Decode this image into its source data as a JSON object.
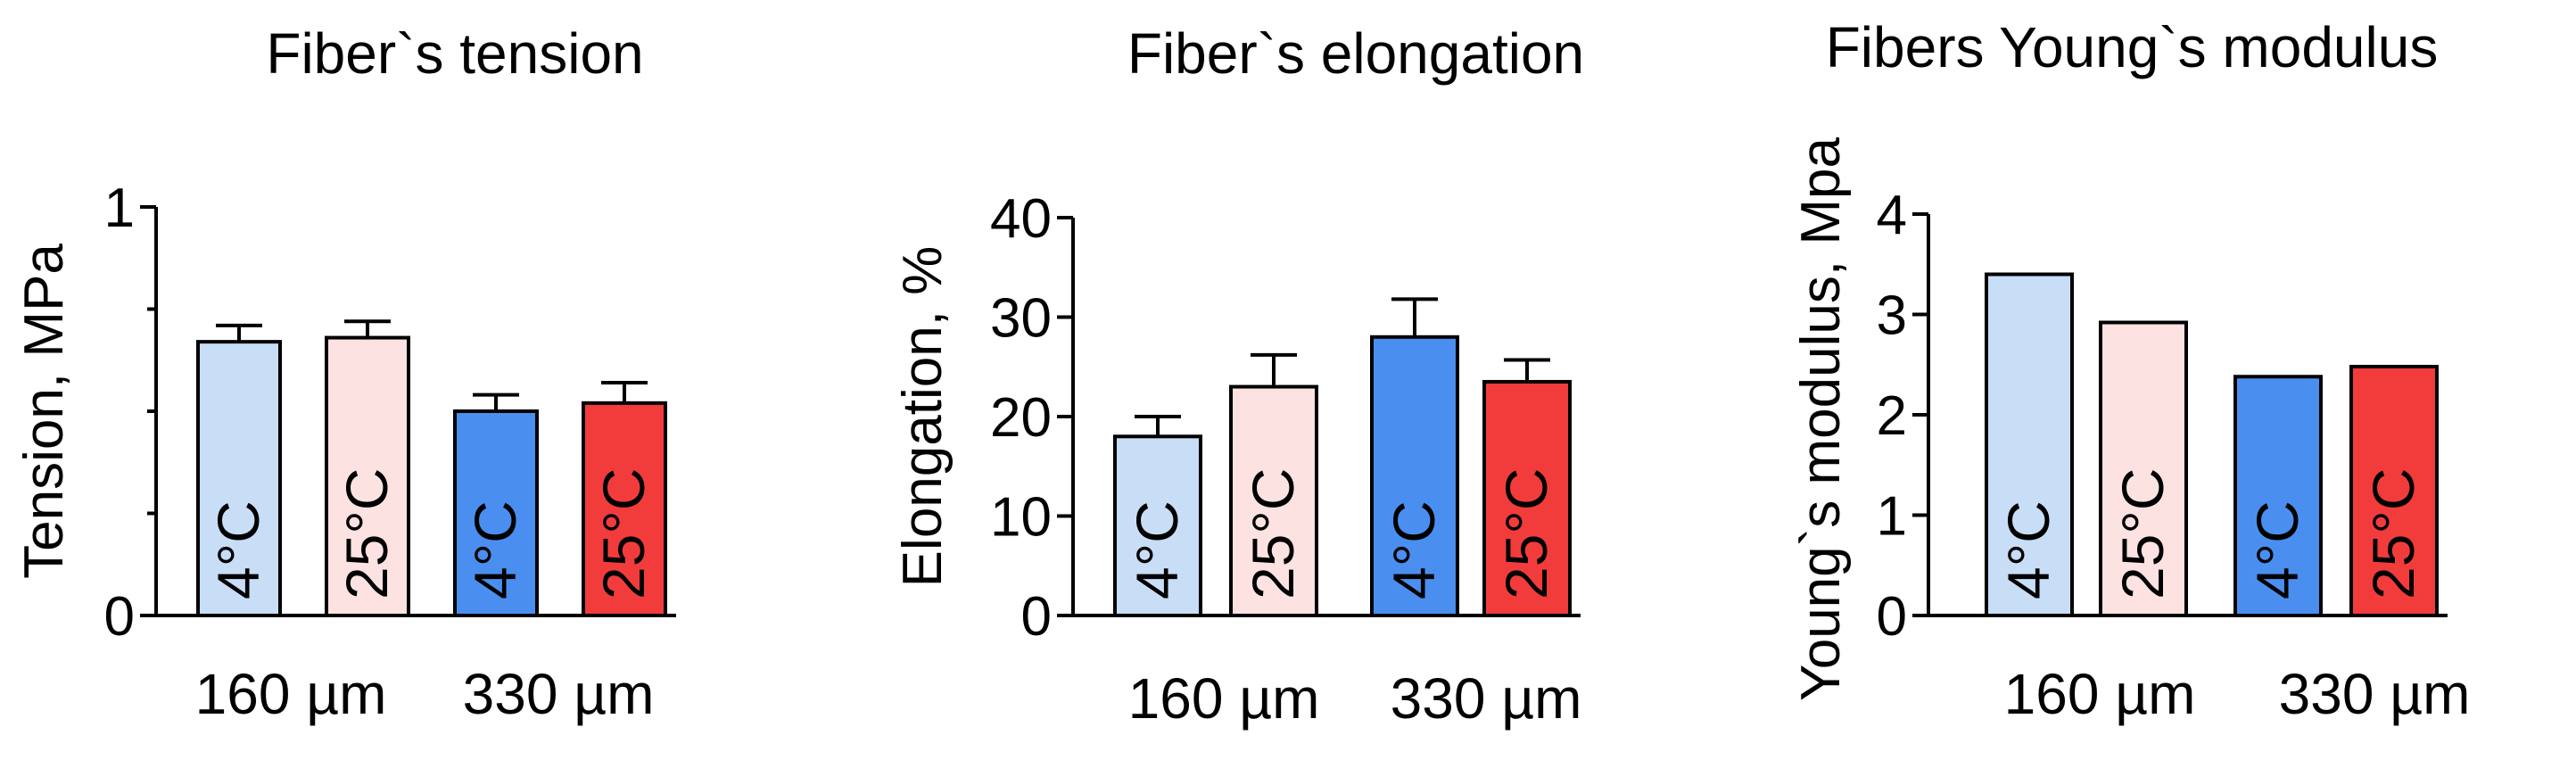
{
  "chart_data": [
    {
      "type": "bar",
      "title": "Fiber`s tension",
      "ylabel": "Tension, MPa",
      "xlabel": "",
      "ylim": [
        0,
        1
      ],
      "yticks": [
        0,
        1
      ],
      "minor_ticks": [
        0.25,
        0.5,
        0.75
      ],
      "groups": [
        "160 µm",
        "330 µm"
      ],
      "categories": [
        "4°C",
        "25°C",
        "4°C",
        "25°C"
      ],
      "values": [
        0.67,
        0.68,
        0.5,
        0.52
      ],
      "errors": [
        0.04,
        0.04,
        0.04,
        0.05
      ],
      "colors": [
        "#c8ddf6",
        "#fde2e2",
        "#4a8ff0",
        "#f23c3c"
      ]
    },
    {
      "type": "bar",
      "title": "Fiber`s elongation",
      "ylabel": "Elongation, %",
      "xlabel": "",
      "ylim": [
        0,
        40
      ],
      "yticks": [
        0,
        10,
        20,
        30,
        40
      ],
      "minor_ticks": [],
      "groups": [
        "160 µm",
        "330 µm"
      ],
      "categories": [
        "4°C",
        "25°C",
        "4°C",
        "25°C"
      ],
      "values": [
        18,
        23,
        28,
        23.5
      ],
      "errors": [
        2,
        3.2,
        3.8,
        2.2
      ],
      "colors": [
        "#c8ddf6",
        "#fde2e2",
        "#4a8ff0",
        "#f23c3c"
      ]
    },
    {
      "type": "bar",
      "title": "Fibers Young`s modulus",
      "ylabel": "Young`s modulus, Mpa",
      "xlabel": "",
      "ylim": [
        0,
        4
      ],
      "yticks": [
        0,
        1,
        2,
        3,
        4
      ],
      "minor_ticks": [],
      "groups": [
        "160 µm",
        "330 µm"
      ],
      "categories": [
        "4°C",
        "25°C",
        "4°C",
        "25°C"
      ],
      "values": [
        3.4,
        2.92,
        2.38,
        2.48
      ],
      "errors": [
        0,
        0,
        0,
        0
      ],
      "colors": [
        "#c8ddf6",
        "#fde2e2",
        "#4a8ff0",
        "#f23c3c"
      ]
    }
  ]
}
